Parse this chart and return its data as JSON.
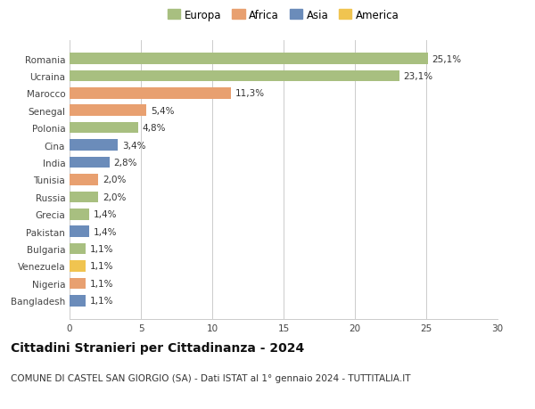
{
  "title": "Cittadini Stranieri per Cittadinanza - 2024",
  "subtitle": "COMUNE DI CASTEL SAN GIORGIO (SA) - Dati ISTAT al 1° gennaio 2024 - TUTTITALIA.IT",
  "categories": [
    "Bangladesh",
    "Nigeria",
    "Venezuela",
    "Bulgaria",
    "Pakistan",
    "Grecia",
    "Russia",
    "Tunisia",
    "India",
    "Cina",
    "Polonia",
    "Senegal",
    "Marocco",
    "Ucraina",
    "Romania"
  ],
  "values": [
    1.1,
    1.1,
    1.1,
    1.1,
    1.4,
    1.4,
    2.0,
    2.0,
    2.8,
    3.4,
    4.8,
    5.4,
    11.3,
    23.1,
    25.1
  ],
  "labels": [
    "1,1%",
    "1,1%",
    "1,1%",
    "1,1%",
    "1,4%",
    "1,4%",
    "2,0%",
    "2,0%",
    "2,8%",
    "3,4%",
    "4,8%",
    "5,4%",
    "11,3%",
    "23,1%",
    "25,1%"
  ],
  "colors": [
    "#6b8cba",
    "#e8a070",
    "#f0c450",
    "#a8bf80",
    "#6b8cba",
    "#a8bf80",
    "#a8bf80",
    "#e8a070",
    "#6b8cba",
    "#6b8cba",
    "#a8bf80",
    "#e8a070",
    "#e8a070",
    "#a8bf80",
    "#a8bf80"
  ],
  "legend_labels": [
    "Europa",
    "Africa",
    "Asia",
    "America"
  ],
  "legend_colors": [
    "#a8bf80",
    "#e8a070",
    "#6b8cba",
    "#f0c450"
  ],
  "xlim": [
    0,
    30
  ],
  "xticks": [
    0,
    5,
    10,
    15,
    20,
    25,
    30
  ],
  "background_color": "#ffffff",
  "bar_height": 0.65,
  "grid_color": "#cccccc",
  "title_fontsize": 10,
  "subtitle_fontsize": 7.5,
  "label_fontsize": 7.5,
  "tick_fontsize": 7.5,
  "legend_fontsize": 8.5
}
